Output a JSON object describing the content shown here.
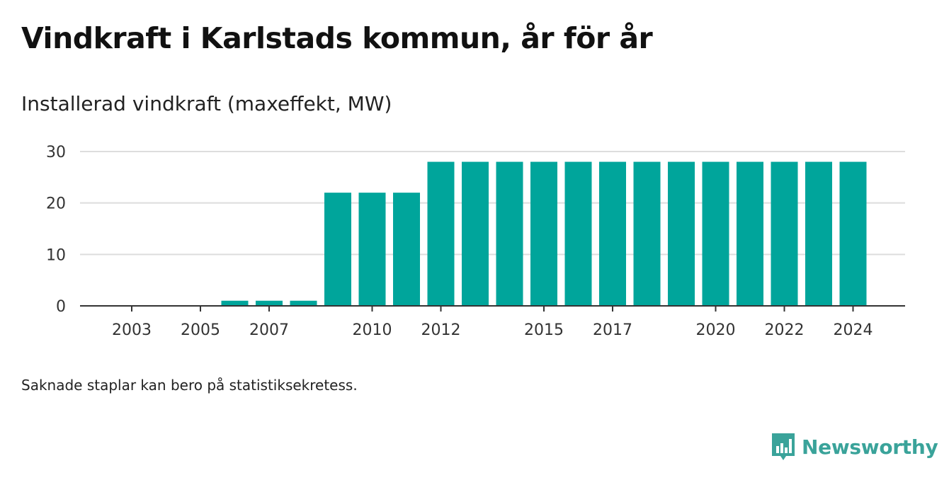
{
  "title": "Vindkraft i Karlstads kommun, år för år",
  "subtitle": "Installerad vindkraft (maxeffekt, MW)",
  "note": "Saknade staplar kan bero på statistiksekretess.",
  "brand": {
    "name": "Newsworthy",
    "icon": "newsworthy-logo-icon",
    "color": "#3aa39a"
  },
  "chart_data": {
    "type": "bar",
    "categories": [
      "2003",
      "2004",
      "2005",
      "2006",
      "2007",
      "2008",
      "2009",
      "2010",
      "2011",
      "2012",
      "2013",
      "2014",
      "2015",
      "2016",
      "2017",
      "2018",
      "2019",
      "2020",
      "2021",
      "2022",
      "2023",
      "2024"
    ],
    "values": [
      0,
      0,
      0,
      1,
      1,
      1,
      22,
      22,
      22,
      28,
      28,
      28,
      28,
      28,
      28,
      28,
      28,
      28,
      28,
      28,
      28,
      28
    ],
    "x_tick_labels": [
      "2003",
      "2005",
      "2007",
      "2010",
      "2012",
      "2015",
      "2017",
      "2020",
      "2022",
      "2024"
    ],
    "y_ticks": [
      0,
      10,
      20,
      30
    ],
    "ylim": [
      0,
      30
    ],
    "bar_color": "#00a59b",
    "grid": true
  }
}
